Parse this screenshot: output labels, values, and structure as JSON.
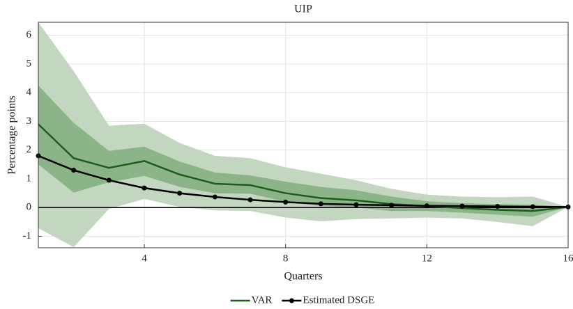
{
  "chart_data": {
    "type": "line",
    "title": "UIP",
    "xlabel": "Quarters",
    "ylabel": "Percentage points",
    "x": [
      1,
      2,
      3,
      4,
      5,
      6,
      7,
      8,
      9,
      10,
      11,
      12,
      13,
      14,
      15,
      16
    ],
    "xlim": [
      1,
      16
    ],
    "xticks": [
      4,
      8,
      12,
      16
    ],
    "ylim": [
      -1.4,
      6.45
    ],
    "yticks": [
      -1,
      0,
      1,
      2,
      3,
      4,
      5,
      6
    ],
    "grid": true,
    "reference_line": 0,
    "legend": "bottom",
    "bands": [
      {
        "color": "#c3d6c0",
        "upper": [
          6.45,
          4.75,
          2.85,
          2.92,
          2.25,
          1.8,
          1.72,
          1.4,
          1.18,
          0.95,
          0.65,
          0.45,
          0.38,
          0.36,
          0.38,
          0.02
        ],
        "lower": [
          -0.72,
          -1.38,
          -0.05,
          0.3,
          0.02,
          -0.1,
          -0.12,
          -0.35,
          -0.48,
          -0.4,
          -0.38,
          -0.35,
          -0.38,
          -0.5,
          -0.65,
          0.02
        ]
      },
      {
        "color": "#8cb489",
        "upper": [
          4.25,
          2.95,
          1.97,
          2.12,
          1.6,
          1.22,
          1.12,
          0.9,
          0.72,
          0.6,
          0.38,
          0.22,
          0.15,
          0.12,
          0.1,
          0.02
        ],
        "lower": [
          1.5,
          0.52,
          0.88,
          1.1,
          0.72,
          0.5,
          0.48,
          0.2,
          0.05,
          0.0,
          -0.12,
          -0.12,
          -0.18,
          -0.25,
          -0.32,
          0.02
        ]
      }
    ],
    "series": [
      {
        "name": "VAR",
        "color": "#1b5e1b",
        "marker": false,
        "values": [
          2.9,
          1.72,
          1.38,
          1.62,
          1.15,
          0.83,
          0.78,
          0.5,
          0.33,
          0.25,
          0.12,
          0.05,
          -0.02,
          -0.08,
          -0.12,
          0.02
        ]
      },
      {
        "name": "Estimated DSGE",
        "color": "#000000",
        "marker": true,
        "values": [
          1.8,
          1.3,
          0.95,
          0.68,
          0.5,
          0.37,
          0.27,
          0.19,
          0.13,
          0.1,
          0.08,
          0.06,
          0.05,
          0.04,
          0.03,
          0.02
        ]
      }
    ]
  }
}
